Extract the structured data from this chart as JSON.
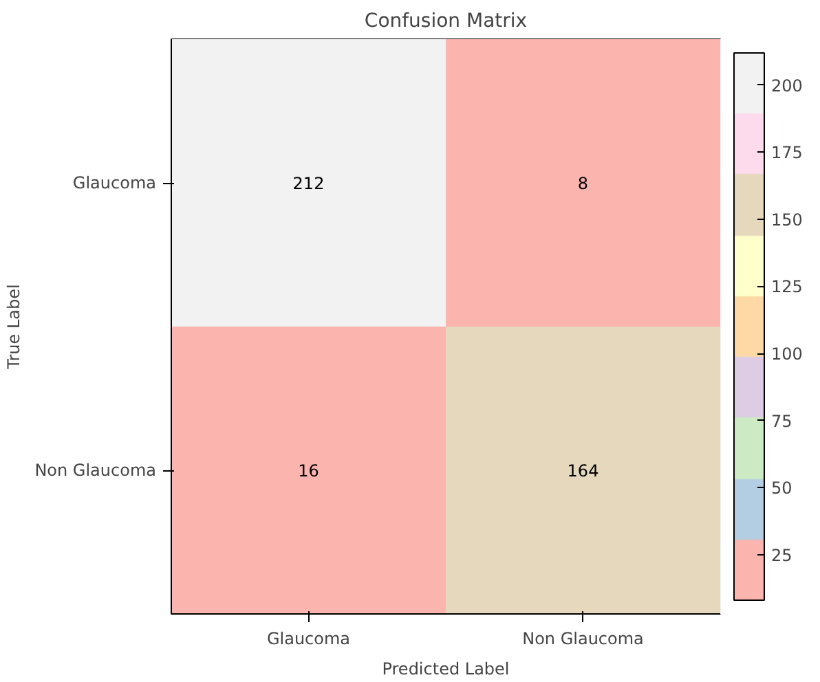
{
  "chart_data": {
    "type": "heatmap",
    "title": "Confusion Matrix",
    "xlabel": "Predicted Label",
    "ylabel": "True Label",
    "categories": [
      "Glaucoma",
      "Non Glaucoma"
    ],
    "y_categories": [
      "Glaucoma",
      "Non Glaucoma"
    ],
    "cells": [
      [
        212,
        8
      ],
      [
        16,
        164
      ]
    ],
    "clim": [
      8,
      212
    ],
    "cticks": [
      25,
      50,
      75,
      100,
      125,
      150,
      175,
      200
    ],
    "colors": [
      "#fbb4ae",
      "#b3cde3",
      "#ccebc5",
      "#decbe4",
      "#fed9a6",
      "#ffffcc",
      "#e5d8bd",
      "#fddaec",
      "#f2f2f2"
    ],
    "data_labels": true
  }
}
